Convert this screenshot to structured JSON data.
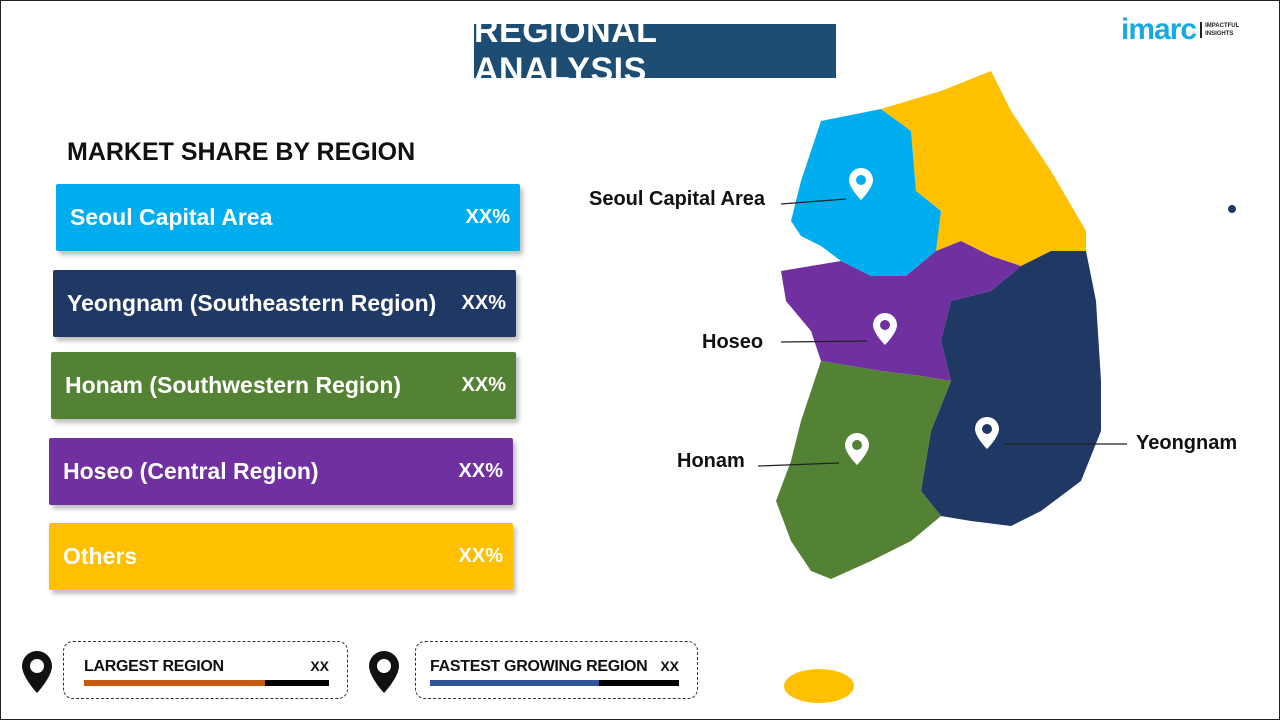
{
  "title": "REGIONAL ANALYSIS",
  "logo": {
    "word": "imarc",
    "tagline_1": "IMPACTFUL",
    "tagline_2": "INSIGHTS"
  },
  "subtitle": "MARKET SHARE BY REGION",
  "regions": [
    {
      "label": "Seoul Capital Area",
      "value": "XX%",
      "color": "#00AEEF"
    },
    {
      "label": "Yeongnam (Southeastern Region)",
      "value": "XX%",
      "color": "#1F3864"
    },
    {
      "label": "Honam (Southwestern Region)",
      "value": "XX%",
      "color": "#548235"
    },
    {
      "label": "Hoseo (Central Region)",
      "value": "XX%",
      "color": "#7030A0"
    },
    {
      "label": "Others",
      "value": "XX%",
      "color": "#FFC000"
    }
  ],
  "map_labels": {
    "seoul": "Seoul Capital Area",
    "hoseo": "Hoseo",
    "honam": "Honam",
    "yeongnam": "Yeongnam"
  },
  "cards": [
    {
      "label": "LARGEST REGION",
      "value": "XX",
      "color": "#C55A11",
      "fill_percent": 74
    },
    {
      "label": "FASTEST GROWING REGION",
      "value": "XX",
      "color": "#2F5597",
      "fill_percent": 68
    }
  ]
}
